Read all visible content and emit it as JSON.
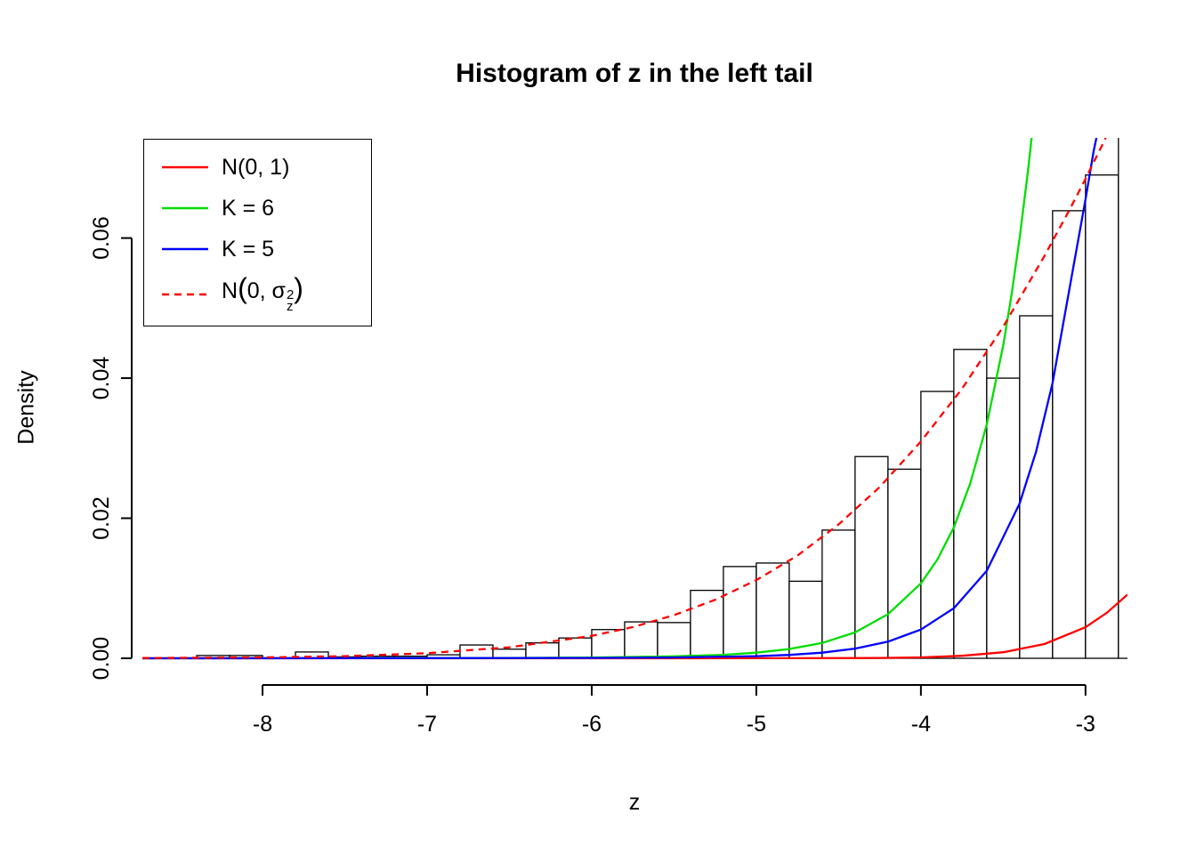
{
  "labels": {
    "title": "Histogram of z in the left tail",
    "xlabel": "z",
    "ylabel": "Density"
  },
  "legend": {
    "items": [
      {
        "id": "n01",
        "label": "N(0, 1)",
        "color": "#ff0000",
        "style": "solid"
      },
      {
        "id": "k6",
        "label": "K = 6",
        "color": "#00dd00",
        "style": "solid"
      },
      {
        "id": "k5",
        "label": "K = 5",
        "color": "#0000ff",
        "style": "solid"
      },
      {
        "id": "n0-sigma2",
        "label": "N(0, σz²)",
        "color": "#ff0000",
        "style": "dashed",
        "parts": {
          "prefix": "N",
          "lparen": "(",
          "middle": "0, ",
          "sigma": "σ",
          "sup": "2",
          "sub": "z",
          "rparen": ")"
        }
      }
    ]
  },
  "chart_data": {
    "type": "bar",
    "subtype": "histogram-with-density-curves",
    "title": "Histogram of z in the left tail",
    "xlabel": "z",
    "ylabel": "Density",
    "xlim": [
      -8.73,
      -2.745
    ],
    "ylim": [
      0,
      0.0743
    ],
    "x_ticks": [
      "-8",
      "-7",
      "-6",
      "-5",
      "-4",
      "-3"
    ],
    "x_tick_values": [
      -8,
      -7,
      -6,
      -5,
      -4,
      -3
    ],
    "y_ticks": [
      "0.00",
      "0.02",
      "0.04",
      "0.06"
    ],
    "y_tick_values": [
      0,
      0.02,
      0.04,
      0.06
    ],
    "grid": false,
    "legend_position": "topleft",
    "histogram": {
      "bin_width": 0.2,
      "bar_fill": "#ffffff",
      "bar_stroke": "#000000",
      "bins": [
        {
          "x": -8.6,
          "density": 0.0
        },
        {
          "x": -8.4,
          "density": 0.0004
        },
        {
          "x": -8.2,
          "density": 0.0004
        },
        {
          "x": -8.0,
          "density": 0.0
        },
        {
          "x": -7.8,
          "density": 0.0009
        },
        {
          "x": -7.6,
          "density": 0.0002
        },
        {
          "x": -7.4,
          "density": 0.0003
        },
        {
          "x": -7.2,
          "density": 0.0003
        },
        {
          "x": -7.0,
          "density": 0.0005
        },
        {
          "x": -6.8,
          "density": 0.0019
        },
        {
          "x": -6.6,
          "density": 0.0013
        },
        {
          "x": -6.4,
          "density": 0.0022
        },
        {
          "x": -6.2,
          "density": 0.0029
        },
        {
          "x": -6.0,
          "density": 0.0041
        },
        {
          "x": -5.8,
          "density": 0.0052
        },
        {
          "x": -5.6,
          "density": 0.0051
        },
        {
          "x": -5.4,
          "density": 0.0097
        },
        {
          "x": -5.2,
          "density": 0.0131
        },
        {
          "x": -5.0,
          "density": 0.0136
        },
        {
          "x": -4.8,
          "density": 0.011
        },
        {
          "x": -4.6,
          "density": 0.0183
        },
        {
          "x": -4.4,
          "density": 0.0288
        },
        {
          "x": -4.2,
          "density": 0.027
        },
        {
          "x": -4.0,
          "density": 0.0381
        },
        {
          "x": -3.8,
          "density": 0.0441
        },
        {
          "x": -3.6,
          "density": 0.04
        },
        {
          "x": -3.4,
          "density": 0.0489
        },
        {
          "x": -3.2,
          "density": 0.0639
        },
        {
          "x": -3.0,
          "density": 0.069
        },
        {
          "x": -2.8,
          "density": 0.13
        }
      ]
    },
    "series": [
      {
        "id": "n01",
        "name": "N(0, 1)",
        "color": "#ff0000",
        "dash": null,
        "points": [
          [
            -8.73,
            0
          ],
          [
            -6,
            0
          ],
          [
            -5,
            1e-05
          ],
          [
            -4.5,
            2e-05
          ],
          [
            -4.25,
            5e-05
          ],
          [
            -4,
            0.00013
          ],
          [
            -3.75,
            0.00035
          ],
          [
            -3.5,
            0.00087
          ],
          [
            -3.25,
            0.00203
          ],
          [
            -3,
            0.00443
          ],
          [
            -2.87,
            0.0065
          ],
          [
            -2.745,
            0.0091
          ]
        ]
      },
      {
        "id": "k6",
        "name": "K = 6",
        "color": "#00dd00",
        "dash": null,
        "points": [
          [
            -8.73,
            0
          ],
          [
            -6.5,
            5e-05
          ],
          [
            -6,
            0.0001
          ],
          [
            -5.5,
            0.00028
          ],
          [
            -5.2,
            0.0005
          ],
          [
            -5,
            0.0008
          ],
          [
            -4.8,
            0.00132
          ],
          [
            -4.6,
            0.00218
          ],
          [
            -4.4,
            0.0037
          ],
          [
            -4.2,
            0.0063
          ],
          [
            -4,
            0.0107
          ],
          [
            -3.9,
            0.0141
          ],
          [
            -3.8,
            0.0187
          ],
          [
            -3.7,
            0.025
          ],
          [
            -3.6,
            0.0334
          ],
          [
            -3.5,
            0.0447
          ],
          [
            -3.45,
            0.0518
          ],
          [
            -3.4,
            0.06
          ],
          [
            -3.35,
            0.0695
          ],
          [
            -3.32,
            0.0758
          ]
        ]
      },
      {
        "id": "k5",
        "name": "K = 5",
        "color": "#0000ff",
        "dash": null,
        "points": [
          [
            -8.73,
            0
          ],
          [
            -6,
            5e-05
          ],
          [
            -5.5,
            0.00012
          ],
          [
            -5,
            0.0003
          ],
          [
            -4.8,
            0.00048
          ],
          [
            -4.6,
            0.0008
          ],
          [
            -4.4,
            0.00138
          ],
          [
            -4.2,
            0.00238
          ],
          [
            -4,
            0.0041
          ],
          [
            -3.8,
            0.00715
          ],
          [
            -3.6,
            0.0125
          ],
          [
            -3.4,
            0.0221
          ],
          [
            -3.3,
            0.0295
          ],
          [
            -3.2,
            0.0393
          ],
          [
            -3.1,
            0.0524
          ],
          [
            -3.0,
            0.0655
          ],
          [
            -2.95,
            0.0725
          ],
          [
            -2.92,
            0.0758
          ]
        ]
      },
      {
        "id": "n0-sigma2",
        "name": "N(0, σz²)",
        "color": "#ff0000",
        "dash": "8,6",
        "points": [
          [
            -8.73,
            4e-05
          ],
          [
            -8.5,
            6e-05
          ],
          [
            -8,
            0.00013
          ],
          [
            -7.5,
            0.0003
          ],
          [
            -7,
            0.00073
          ],
          [
            -6.5,
            0.00158
          ],
          [
            -6,
            0.0032
          ],
          [
            -5.75,
            0.00446
          ],
          [
            -5.5,
            0.00616
          ],
          [
            -5.25,
            0.00836
          ],
          [
            -5,
            0.01117
          ],
          [
            -4.75,
            0.01467
          ],
          [
            -4.5,
            0.01911
          ],
          [
            -4.25,
            0.02445
          ],
          [
            -4,
            0.03096
          ],
          [
            -3.75,
            0.03848
          ],
          [
            -3.5,
            0.04735
          ],
          [
            -3.25,
            0.05742
          ],
          [
            -3.1,
            0.0639
          ],
          [
            -3,
            0.06844
          ],
          [
            -2.9,
            0.0732
          ],
          [
            -2.84,
            0.0762
          ]
        ]
      }
    ]
  }
}
